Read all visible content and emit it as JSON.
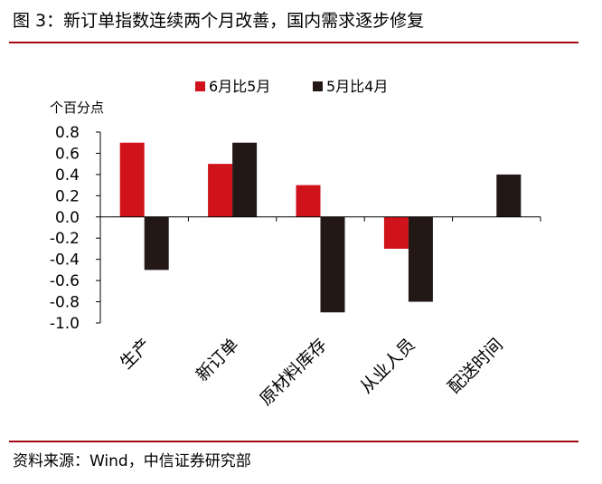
{
  "figure": {
    "title": "图 3：新订单指数连续两个月改善，国内需求逐步修复",
    "source": "资料来源：Wind，中信证券研究部"
  },
  "chart_data": {
    "type": "bar",
    "title": "",
    "xlabel": "",
    "ylabel": "个百分点",
    "categories": [
      "生产",
      "新订单",
      "原材料库存",
      "从业人员",
      "配送时间"
    ],
    "series": [
      {
        "name": "6月比5月",
        "color": "#d0121b",
        "values": [
          0.7,
          0.5,
          0.3,
          -0.3,
          0.0
        ]
      },
      {
        "name": "5月比4月",
        "color": "#231815",
        "values": [
          -0.5,
          0.7,
          -0.9,
          -0.8,
          0.4
        ]
      }
    ],
    "ylim": [
      -1.0,
      0.8
    ],
    "yticks": [
      "0.8",
      "0.6",
      "0.4",
      "0.2",
      "0.0",
      "-0.2",
      "-0.4",
      "-0.6",
      "-0.8",
      "-1.0"
    ],
    "grid": false,
    "legend_position": "top-center"
  }
}
